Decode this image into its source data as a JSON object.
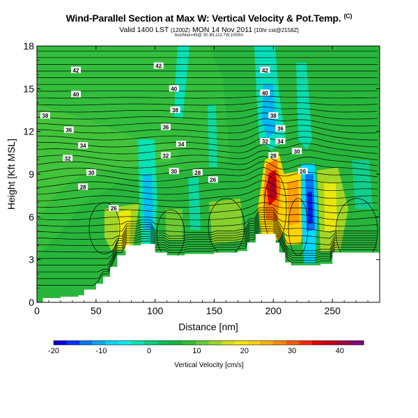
{
  "header": {
    "title": "Wind-Parallel Section at Max W: Vertical Velocity & Pot.Temp.",
    "title_mark": "(C)",
    "subtitle_a": "Valid 1400 LST",
    "subtitle_b": "(1200Z)",
    "subtitle_c": "MON 14 Nov 2011",
    "subtitle_d": "[10hr cst@2158Z]",
    "credit": "box/Max=45@ 30.3N,113.7W,1050m"
  },
  "chart_data": {
    "type": "heatmap",
    "title": "Wind-Parallel Section at Max W: Vertical Velocity & Pot.Temp.",
    "xlabel": "Distance [nm]",
    "ylabel": "Height [Kft MSL]",
    "xlim": [
      0,
      290
    ],
    "ylim": [
      0,
      18
    ],
    "x_ticks": [
      "0",
      "50",
      "100",
      "150",
      "200",
      "250"
    ],
    "y_ticks": [
      "0",
      "3",
      "6",
      "9",
      "12",
      "15",
      "18"
    ],
    "colorbar": {
      "label": "Vertical Velocity [cm/s]",
      "range": [
        -20,
        45
      ],
      "tick_labels": [
        "-20",
        "-10",
        "0",
        "10",
        "20",
        "30",
        "40"
      ],
      "colors": [
        "#0000dd",
        "#0033ff",
        "#0077ff",
        "#00a8ff",
        "#00d8ff",
        "#00f0e8",
        "#00e5b0",
        "#00d27a",
        "#00c25a",
        "#15b838",
        "#30c030",
        "#62cd30",
        "#9ad628",
        "#d2e018",
        "#f5ea00",
        "#ffd400",
        "#ffb200",
        "#ff8a00",
        "#ff5a00",
        "#ff2a00",
        "#e00000",
        "#c00018",
        "#a00048",
        "#80007a"
      ]
    },
    "terrain_kft": [
      [
        0,
        0
      ],
      [
        5,
        0.3
      ],
      [
        20,
        0.4
      ],
      [
        35,
        0.5
      ],
      [
        40,
        0.9
      ],
      [
        50,
        1.3
      ],
      [
        56,
        1.8
      ],
      [
        62,
        2.5
      ],
      [
        68,
        3.3
      ],
      [
        75,
        4
      ],
      [
        80,
        4
      ],
      [
        88,
        4.1
      ],
      [
        97,
        4.1
      ],
      [
        100,
        3.5
      ],
      [
        110,
        3.3
      ],
      [
        125,
        3.4
      ],
      [
        150,
        3.5
      ],
      [
        170,
        3.6
      ],
      [
        178,
        4.2
      ],
      [
        185,
        4.8
      ],
      [
        198,
        4.8
      ],
      [
        202,
        4.2
      ],
      [
        205,
        3.5
      ],
      [
        210,
        2.8
      ],
      [
        215,
        2.6
      ],
      [
        240,
        2.7
      ],
      [
        250,
        3.5
      ],
      [
        290,
        3.5
      ]
    ],
    "features": [
      {
        "name": "updraft core",
        "x_nm": 194,
        "z_kft": 8,
        "w_cms": 45
      },
      {
        "name": "downdraft core",
        "x_nm": 233,
        "z_kft": 6,
        "w_cms": -18
      }
    ],
    "theta_labels": [
      {
        "text": "42",
        "x": 33,
        "z": 16.3
      },
      {
        "text": "42",
        "x": 103,
        "z": 16.6
      },
      {
        "text": "42",
        "x": 193,
        "z": 16.3
      },
      {
        "text": "40",
        "x": 33,
        "z": 14.6
      },
      {
        "text": "40",
        "x": 116,
        "z": 15
      },
      {
        "text": "40",
        "x": 193,
        "z": 14.7
      },
      {
        "text": "38",
        "x": 7,
        "z": 13.1
      },
      {
        "text": "38",
        "x": 117,
        "z": 13.5
      },
      {
        "text": "38",
        "x": 200,
        "z": 13.1
      },
      {
        "text": "36",
        "x": 27,
        "z": 12.1
      },
      {
        "text": "36",
        "x": 109,
        "z": 12.3
      },
      {
        "text": "36",
        "x": 206,
        "z": 12.2
      },
      {
        "text": "34",
        "x": 39,
        "z": 11
      },
      {
        "text": "34",
        "x": 122,
        "z": 11.1
      },
      {
        "text": "34",
        "x": 206,
        "z": 11.3
      },
      {
        "text": "32",
        "x": 26,
        "z": 10.1
      },
      {
        "text": "32",
        "x": 109,
        "z": 10.3
      },
      {
        "text": "32",
        "x": 193,
        "z": 11.3
      },
      {
        "text": "30",
        "x": 46,
        "z": 9.1
      },
      {
        "text": "30",
        "x": 116,
        "z": 9.2
      },
      {
        "text": "30",
        "x": 220,
        "z": 10.6
      },
      {
        "text": "28",
        "x": 39,
        "z": 8.1
      },
      {
        "text": "28",
        "x": 136,
        "z": 9.1
      },
      {
        "text": "28",
        "x": 200,
        "z": 10.3
      },
      {
        "text": "26",
        "x": 149,
        "z": 8.6
      },
      {
        "text": "26",
        "x": 225,
        "z": 9.2
      },
      {
        "text": "26",
        "x": 65,
        "z": 6.6
      }
    ]
  }
}
